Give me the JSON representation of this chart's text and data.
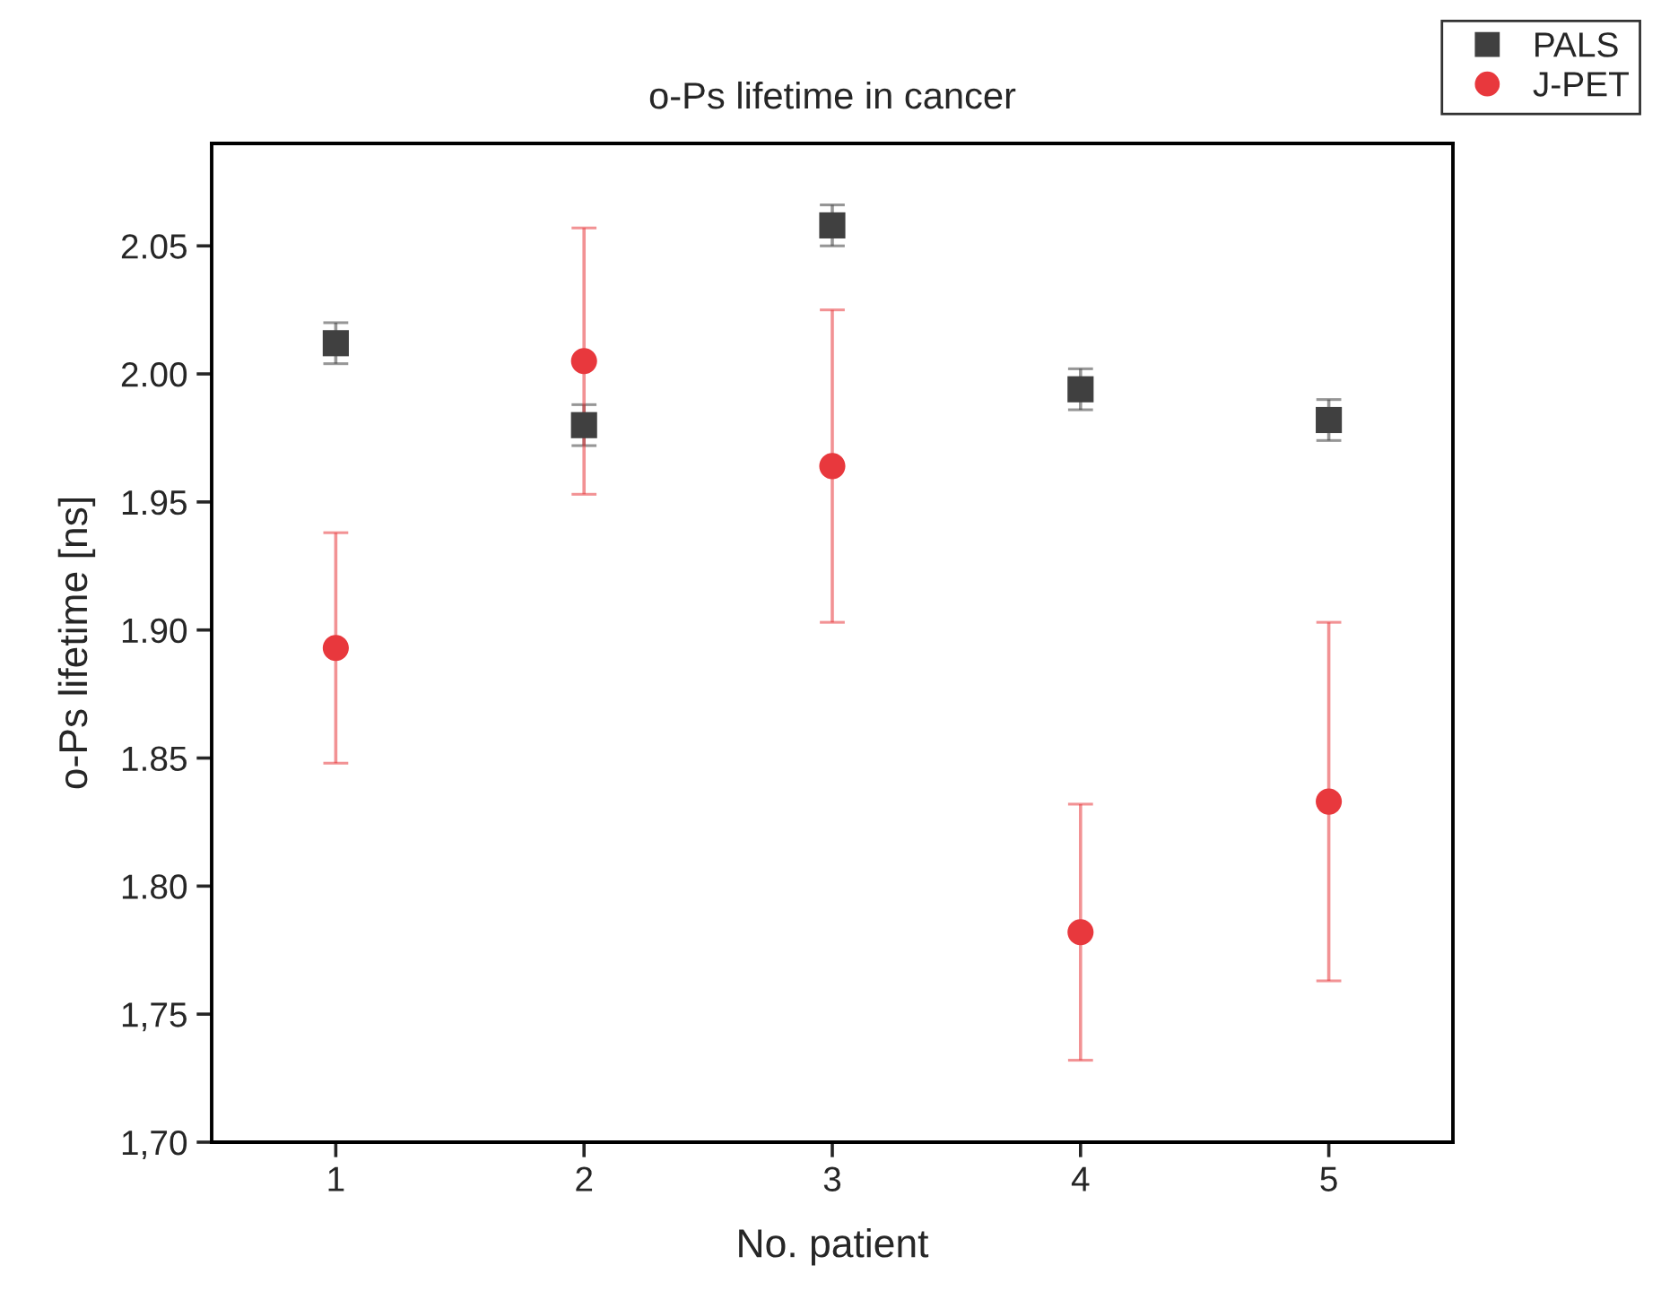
{
  "chart_data": {
    "type": "scatter",
    "title": "o-Ps lifetime in cancer",
    "xlabel": "No. patient",
    "ylabel": "o-Ps lifetime [ns]",
    "x": [
      1,
      2,
      3,
      4,
      5
    ],
    "series": [
      {
        "name": "PALS",
        "color": "#404040",
        "marker": "square",
        "values": [
          2.012,
          1.98,
          2.058,
          1.994,
          1.982
        ],
        "errors": [
          0.008,
          0.008,
          0.008,
          0.008,
          0.008
        ]
      },
      {
        "name": "J-PET",
        "color": "#e8383d",
        "marker": "circle",
        "values": [
          1.893,
          2.005,
          1.964,
          1.782,
          1.833
        ],
        "errors": [
          0.045,
          0.052,
          0.061,
          0.05,
          0.07
        ]
      }
    ],
    "xlim": [
      0.5,
      5.5
    ],
    "xticks": [
      1,
      2,
      3,
      4,
      5
    ],
    "ylim": [
      1.7,
      2.09
    ],
    "yticks": [
      {
        "value": 1.7,
        "label": "1,70"
      },
      {
        "value": 1.75,
        "label": "1,75"
      },
      {
        "value": 1.8,
        "label": "1.80"
      },
      {
        "value": 1.85,
        "label": "1.85"
      },
      {
        "value": 1.9,
        "label": "1.90"
      },
      {
        "value": 1.95,
        "label": "1.95"
      },
      {
        "value": 2.0,
        "label": "2.00"
      },
      {
        "value": 2.05,
        "label": "2.05"
      }
    ],
    "grid": false,
    "legend": "top right"
  }
}
